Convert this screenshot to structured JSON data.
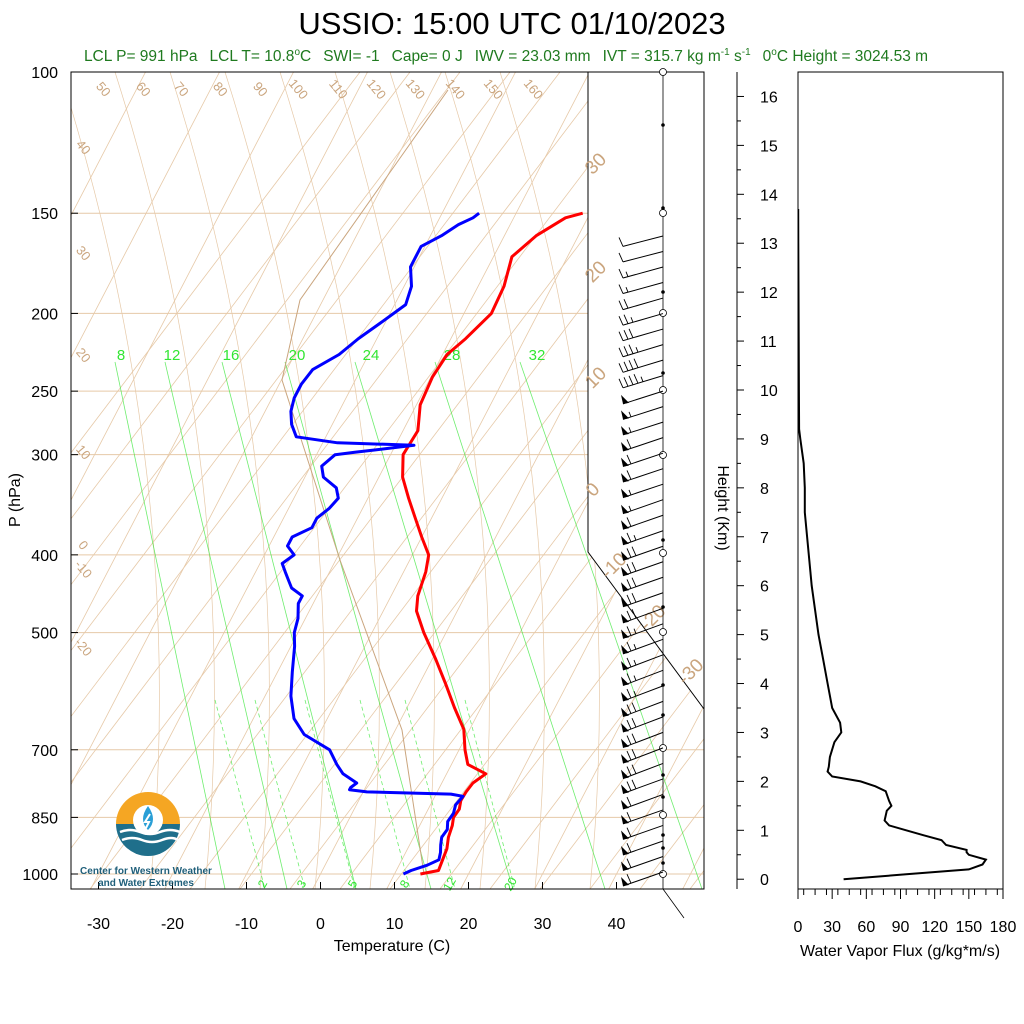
{
  "title": "USSIO: 15:00 UTC 01/10/2023",
  "stats": {
    "lcl_p": "LCL P= 991 hPa",
    "lcl_t_pre": "LCL T= 10.8",
    "lcl_t_unit": "C",
    "swi": "SWI= -1",
    "cape": "Cape= 0 J",
    "iwv": "IWV = 23.03 mm",
    "ivt_pre": "IVT = 315.7 kg m",
    "ivt_exp1": "-1",
    "ivt_mid": " s",
    "ivt_exp2": "-1",
    "zero_height_pre": "0",
    "zero_height_post": "C Height = 3024.53 m"
  },
  "logo": {
    "line1": "Center for Western Weather",
    "line2": "and Water Extremes"
  },
  "colors": {
    "temperature": "#ff0000",
    "dewpoint": "#0000ff",
    "grid": "#e6c9a8",
    "mixing_ratio": "#32e632",
    "labels_tan": "#caa57e",
    "title_green": "#1f7a1f"
  },
  "chart_data": [
    {
      "type": "line",
      "name": "skew-t",
      "xlabel": "Temperature (C)",
      "ylabel": "P (hPa)",
      "xlim": [
        -35,
        52
      ],
      "ylim": [
        1050,
        100
      ],
      "yscale": "log",
      "x_ticks": [
        -30,
        -20,
        -10,
        0,
        10,
        20,
        30,
        40
      ],
      "y_ticks": [
        100,
        150,
        200,
        250,
        300,
        400,
        500,
        700,
        850,
        1000
      ],
      "temperature": {
        "pressure": [
          1000,
          990,
          960,
          930,
          900,
          870,
          850,
          830,
          810,
          790,
          770,
          750,
          730,
          700,
          660,
          620,
          580,
          540,
          500,
          470,
          450,
          420,
          400,
          380,
          360,
          340,
          320,
          300,
          280,
          260,
          240,
          225,
          215,
          200,
          185,
          170,
          160,
          152,
          150
        ],
        "value": [
          13.5,
          15.7,
          15.5,
          15.3,
          14.7,
          14.4,
          14.0,
          14.2,
          13.8,
          13.9,
          14.2,
          15.3,
          12.2,
          10.8,
          9.2,
          6.4,
          3.6,
          0.5,
          -3.0,
          -5.5,
          -6.4,
          -7.0,
          -7.8,
          -10.0,
          -12.2,
          -14.5,
          -16.8,
          -18.3,
          -18.0,
          -19.5,
          -19.8,
          -19.4,
          -18.0,
          -16.3,
          -16.5,
          -17.5,
          -15.7,
          -13.0,
          -11.0
        ]
      },
      "dewpoint": {
        "pressure": [
          1000,
          990,
          975,
          960,
          940,
          920,
          900,
          880,
          860,
          840,
          820,
          800,
          795,
          790,
          785,
          780,
          770,
          750,
          730,
          700,
          670,
          640,
          600,
          560,
          520,
          500,
          480,
          460,
          450,
          440,
          430,
          420,
          410,
          400,
          390,
          380,
          370,
          360,
          350,
          340,
          330,
          320,
          310,
          300,
          298,
          296,
          294,
          292,
          290,
          285,
          275,
          265,
          255,
          245,
          235,
          225,
          215,
          205,
          195,
          185,
          175,
          165,
          160,
          155,
          152,
          150
        ],
        "value": [
          11.2,
          12.0,
          13.8,
          15.0,
          14.7,
          14.2,
          13.8,
          14.0,
          13.5,
          13.7,
          13.4,
          13.8,
          12.0,
          0.5,
          -2.0,
          -2.0,
          -1.5,
          -4.0,
          -5.5,
          -7.5,
          -12.0,
          -14.5,
          -16.5,
          -18.0,
          -19.5,
          -20.5,
          -21.0,
          -22.0,
          -22.0,
          -24.0,
          -25.0,
          -26.0,
          -27.0,
          -26.0,
          -27.5,
          -27.5,
          -25.5,
          -25.5,
          -24.5,
          -24.0,
          -25.0,
          -27.5,
          -28.5,
          -27.5,
          -25.0,
          -22.5,
          -20.0,
          -17.5,
          -28.0,
          -34.0,
          -35.5,
          -36.5,
          -37.0,
          -37.0,
          -36.5,
          -34.0,
          -32.5,
          -30.5,
          -28.5,
          -29.0,
          -30.5,
          -30.5,
          -28.5,
          -27.0,
          -25.5,
          -25.0
        ]
      },
      "dry_adiabat_labels": [
        "-20",
        "-10",
        "0",
        "10",
        "20",
        "30",
        "40",
        "50",
        "60",
        "70",
        "80",
        "90",
        "100",
        "110",
        "120",
        "130",
        "140",
        "150",
        "160"
      ],
      "moist_adiabat_labels": [
        "-30",
        "-20",
        "-10",
        "0",
        "10",
        "20",
        "30"
      ],
      "mixing_ratio_labels_upper": [
        "8",
        "12",
        "16",
        "20",
        "24",
        "28",
        "32"
      ],
      "mixing_ratio_labels_lower": [
        "2",
        "3",
        "5",
        "8",
        "12",
        "20"
      ],
      "wind": {
        "direction_deg": [
          240,
          240,
          245,
          245,
          250,
          250,
          250,
          255,
          255,
          255,
          260,
          260,
          260,
          265,
          265,
          265,
          265,
          270,
          270,
          270,
          270,
          270,
          270,
          270,
          275,
          275,
          275,
          280,
          280,
          280,
          280,
          280,
          280,
          280,
          280,
          275,
          275,
          270,
          270,
          270,
          270,
          270
        ],
        "speed_kt": [
          10,
          10,
          15,
          15,
          20,
          25,
          30,
          35,
          40,
          45,
          50,
          55,
          55,
          60,
          60,
          60,
          55,
          55,
          60,
          65,
          70,
          70,
          70,
          70,
          70,
          65,
          65,
          65,
          65,
          65,
          70,
          70,
          70,
          70,
          70,
          70,
          60,
          60,
          60,
          60,
          60,
          60
        ]
      }
    },
    {
      "type": "line",
      "name": "water-vapor-flux",
      "xlabel": "Water Vapor Flux (g/kg*m/s)",
      "ylabel": "Height (Km)",
      "xlim": [
        0,
        180
      ],
      "ylim": [
        -0.2,
        16.5
      ],
      "x_ticks": [
        0,
        30,
        60,
        90,
        120,
        150,
        180
      ],
      "y_ticks": [
        0,
        1,
        2,
        3,
        4,
        5,
        6,
        7,
        8,
        9,
        10,
        11,
        12,
        13,
        14,
        15,
        16
      ],
      "height_km": [
        0.0,
        0.1,
        0.2,
        0.3,
        0.4,
        0.5,
        0.55,
        0.6,
        0.7,
        0.8,
        0.9,
        1.0,
        1.1,
        1.2,
        1.4,
        1.5,
        1.6,
        1.8,
        1.9,
        2.0,
        2.1,
        2.2,
        2.3,
        2.5,
        2.8,
        3.0,
        3.2,
        3.5,
        4.0,
        4.5,
        5.0,
        5.5,
        6.0,
        6.5,
        7.0,
        7.5,
        8.0,
        8.5,
        9.0,
        9.2,
        10.0,
        11.0,
        12.0,
        13.0,
        13.7
      ],
      "flux": [
        40,
        95,
        150,
        162,
        165,
        150,
        148,
        148,
        130,
        126,
        110,
        95,
        80,
        76,
        78,
        82,
        80,
        77,
        68,
        55,
        30,
        26,
        27,
        28,
        32,
        38,
        37,
        30,
        26,
        22,
        18,
        15,
        12,
        10,
        8,
        6,
        6,
        5,
        2,
        1,
        0.8,
        0.6,
        0.4,
        0.3,
        0.2
      ]
    }
  ]
}
